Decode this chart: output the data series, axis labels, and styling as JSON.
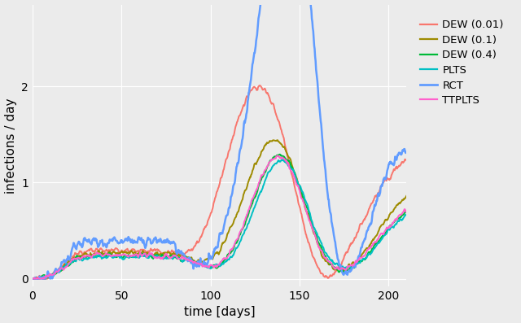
{
  "xlabel": "time [days]",
  "ylabel": "infections / day",
  "xlim": [
    0,
    210
  ],
  "ylim": [
    -0.08,
    2.85
  ],
  "yticks": [
    0,
    1,
    2
  ],
  "xticks": [
    0,
    50,
    100,
    150,
    200
  ],
  "background_color": "#EBEBEB",
  "grid_color": "#FFFFFF",
  "series_order": [
    "DEW (0.01)",
    "DEW (0.1)",
    "DEW (0.4)",
    "PLTS",
    "RCT",
    "TTPLTS"
  ],
  "series": {
    "DEW (0.01)": {
      "color": "#F8766D",
      "lw": 1.4
    },
    "DEW (0.1)": {
      "color": "#9E8B00",
      "lw": 1.4
    },
    "DEW (0.4)": {
      "color": "#00BA38",
      "lw": 1.4
    },
    "PLTS": {
      "color": "#00BFC4",
      "lw": 1.4
    },
    "RCT": {
      "color": "#619CFF",
      "lw": 1.8
    },
    "TTPLTS": {
      "color": "#FF61CC",
      "lw": 1.4
    }
  }
}
